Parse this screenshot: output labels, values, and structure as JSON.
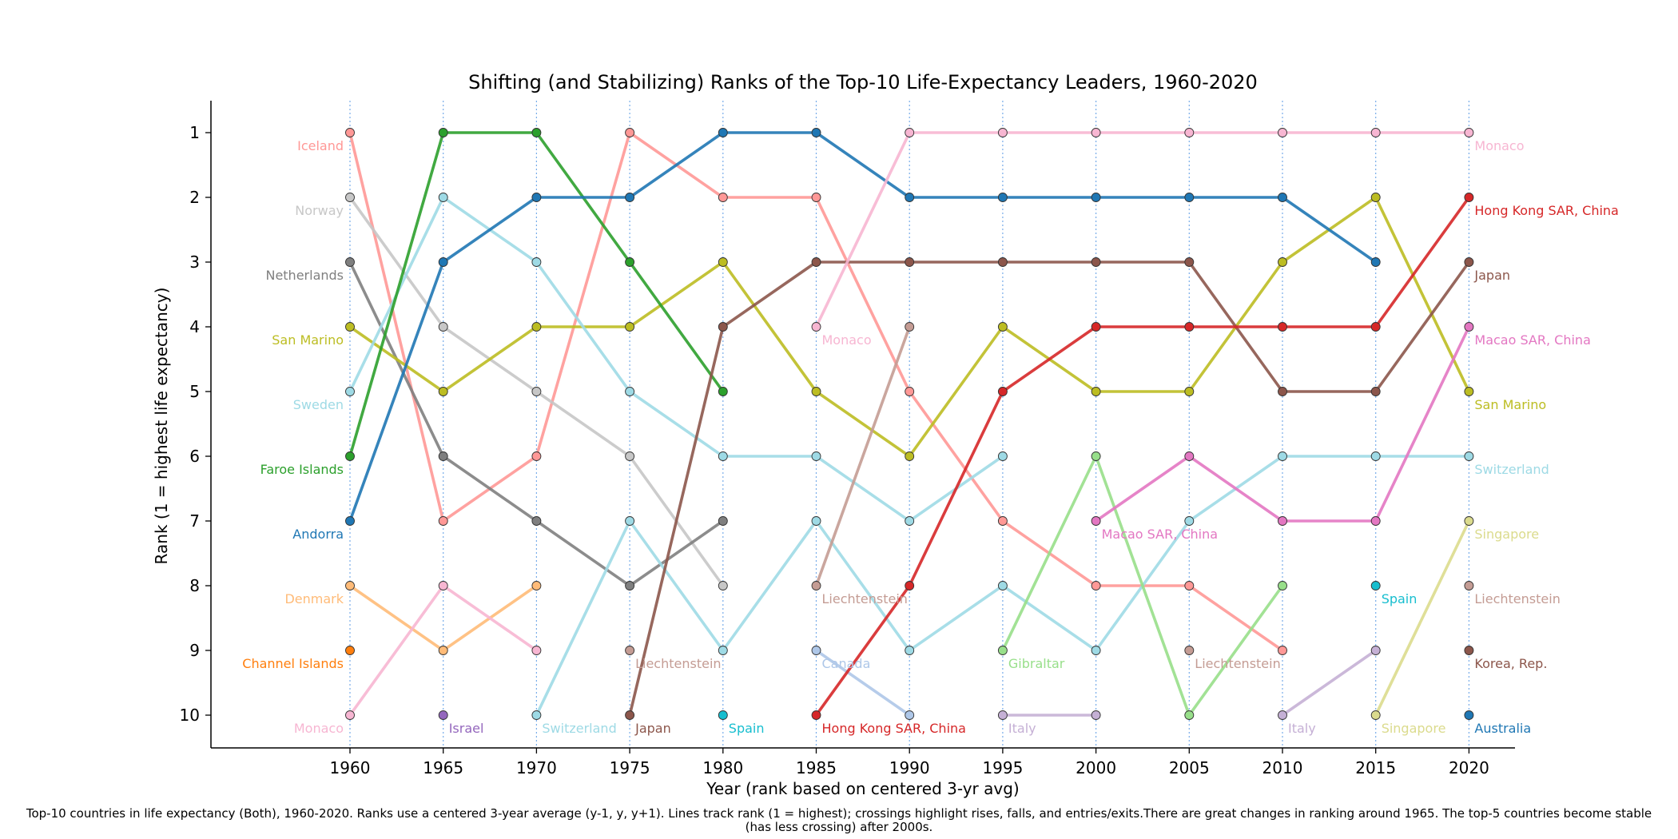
{
  "chart_data": {
    "type": "line",
    "title": "Shifting (and Stabilizing) Ranks of the Top-10 Life-Expectancy Leaders, 1960-2020",
    "xlabel": "Year (rank based on centered 3-yr avg)",
    "ylabel": "Rank (1 = highest life expectancy)",
    "x": [
      1960,
      1965,
      1970,
      1975,
      1980,
      1985,
      1990,
      1995,
      2000,
      2005,
      2010,
      2015,
      2020
    ],
    "y_ticks": [
      1,
      2,
      3,
      4,
      5,
      6,
      7,
      8,
      9,
      10
    ],
    "ylim": [
      10.5,
      0.5
    ],
    "y_inverted": true,
    "series": [
      {
        "name": "Iceland",
        "color": "#ff9896",
        "points": [
          [
            1960,
            1
          ],
          [
            1965,
            7
          ],
          [
            1970,
            6
          ],
          [
            1975,
            1
          ],
          [
            1980,
            2
          ],
          [
            1985,
            2
          ],
          [
            1990,
            5
          ],
          [
            1995,
            7
          ],
          [
            2000,
            8
          ],
          [
            2005,
            8
          ],
          [
            2010,
            9
          ]
        ],
        "labels": [
          {
            "text": "Iceland",
            "year": 1960,
            "rank": 1
          }
        ]
      },
      {
        "name": "Norway",
        "color": "#c7c7c7",
        "points": [
          [
            1960,
            2
          ],
          [
            1965,
            4
          ],
          [
            1970,
            5
          ],
          [
            1975,
            6
          ],
          [
            1980,
            8
          ]
        ],
        "labels": [
          {
            "text": "Norway",
            "year": 1960,
            "rank": 2
          }
        ]
      },
      {
        "name": "Netherlands",
        "color": "#7f7f7f",
        "points": [
          [
            1960,
            3
          ],
          [
            1965,
            6
          ],
          [
            1970,
            7
          ],
          [
            1975,
            8
          ],
          [
            1980,
            7
          ]
        ],
        "labels": [
          {
            "text": "Netherlands",
            "year": 1960,
            "rank": 3
          }
        ]
      },
      {
        "name": "San Marino",
        "color": "#bcbd22",
        "points": [
          [
            1960,
            4
          ],
          [
            1965,
            5
          ],
          [
            1970,
            4
          ],
          [
            1975,
            4
          ],
          [
            1980,
            3
          ],
          [
            1985,
            5
          ],
          [
            1990,
            6
          ],
          [
            1995,
            4
          ],
          [
            2000,
            5
          ],
          [
            2005,
            5
          ],
          [
            2010,
            3
          ],
          [
            2015,
            2
          ],
          [
            2020,
            5
          ]
        ],
        "labels": [
          {
            "text": "San Marino",
            "year": 1960,
            "rank": 4
          },
          {
            "text": "San Marino",
            "year": 2020,
            "rank": 5
          }
        ]
      },
      {
        "name": "Sweden",
        "color": "#9edae5",
        "points": [
          [
            1960,
            5
          ],
          [
            1965,
            2
          ],
          [
            1970,
            3
          ],
          [
            1975,
            5
          ],
          [
            1980,
            6
          ],
          [
            1985,
            6
          ],
          [
            1990,
            7
          ],
          [
            1995,
            6
          ]
        ],
        "labels": [
          {
            "text": "Sweden",
            "year": 1960,
            "rank": 5
          }
        ]
      },
      {
        "name": "Faroe Islands",
        "color": "#2ca02c",
        "points": [
          [
            1960,
            6
          ],
          [
            1965,
            1
          ],
          [
            1970,
            1
          ],
          [
            1975,
            3
          ],
          [
            1980,
            5
          ]
        ],
        "labels": [
          {
            "text": "Faroe Islands",
            "year": 1960,
            "rank": 6
          }
        ]
      },
      {
        "name": "Andorra",
        "color": "#1f77b4",
        "points": [
          [
            1960,
            7
          ],
          [
            1965,
            3
          ],
          [
            1970,
            2
          ],
          [
            1975,
            2
          ],
          [
            1980,
            1
          ],
          [
            1985,
            1
          ],
          [
            1990,
            2
          ],
          [
            1995,
            2
          ],
          [
            2000,
            2
          ],
          [
            2005,
            2
          ],
          [
            2010,
            2
          ],
          [
            2015,
            3
          ]
        ],
        "labels": [
          {
            "text": "Andorra",
            "year": 1960,
            "rank": 7
          }
        ]
      },
      {
        "name": "Denmark",
        "color": "#ffbb78",
        "points": [
          [
            1960,
            8
          ],
          [
            1965,
            9
          ],
          [
            1970,
            8
          ]
        ],
        "labels": [
          {
            "text": "Denmark",
            "year": 1960,
            "rank": 8
          }
        ]
      },
      {
        "name": "Channel Islands",
        "color": "#ff7f0e",
        "points": [
          [
            1960,
            9
          ]
        ],
        "labels": [
          {
            "text": "Channel Islands",
            "year": 1960,
            "rank": 9
          }
        ]
      },
      {
        "name": "Monaco",
        "color": "#f7b6d2",
        "points": [
          [
            1960,
            10
          ],
          [
            1965,
            8
          ],
          [
            1970,
            9
          ]
        ],
        "labels": [
          {
            "text": "Monaco",
            "year": 1960,
            "rank": 10
          }
        ]
      },
      {
        "name": "Israel",
        "color": "#9467bd",
        "points": [
          [
            1965,
            10
          ]
        ],
        "labels": [
          {
            "text": "Israel",
            "year": 1965,
            "rank": 10
          }
        ]
      },
      {
        "name": "Switzerland",
        "color": "#9edae5",
        "points": [
          [
            1970,
            10
          ],
          [
            1975,
            7
          ],
          [
            1980,
            9
          ],
          [
            1985,
            7
          ],
          [
            1990,
            9
          ],
          [
            1995,
            8
          ],
          [
            2000,
            9
          ],
          [
            2005,
            7
          ],
          [
            2010,
            6
          ],
          [
            2015,
            6
          ],
          [
            2020,
            6
          ]
        ],
        "labels": [
          {
            "text": "Switzerland",
            "year": 1970,
            "rank": 10
          },
          {
            "text": "Switzerland",
            "year": 2020,
            "rank": 6
          }
        ]
      },
      {
        "name": "Japan",
        "color": "#8c564b",
        "points": [
          [
            1975,
            10
          ],
          [
            1980,
            4
          ],
          [
            1985,
            3
          ],
          [
            1990,
            3
          ],
          [
            1995,
            3
          ],
          [
            2000,
            3
          ],
          [
            2005,
            3
          ],
          [
            2010,
            5
          ],
          [
            2015,
            5
          ],
          [
            2020,
            3
          ]
        ],
        "labels": [
          {
            "text": "Japan",
            "year": 1975,
            "rank": 10
          },
          {
            "text": "Japan",
            "year": 2020,
            "rank": 3
          }
        ]
      },
      {
        "name": "Liechtenstein",
        "color": "#c49c94",
        "points": [
          [
            1975,
            9
          ]
        ],
        "labels": [
          {
            "text": "Liechtenstein",
            "year": 1975,
            "rank": 9
          }
        ]
      },
      {
        "name": "Spain",
        "color": "#17becf",
        "points": [
          [
            1980,
            10
          ]
        ],
        "labels": [
          {
            "text": "Spain",
            "year": 1980,
            "rank": 10
          }
        ]
      },
      {
        "name": "Monaco",
        "color": "#f7b6d2",
        "points": [
          [
            1985,
            4
          ],
          [
            1990,
            1
          ],
          [
            1995,
            1
          ],
          [
            2000,
            1
          ],
          [
            2005,
            1
          ],
          [
            2010,
            1
          ],
          [
            2015,
            1
          ],
          [
            2020,
            1
          ]
        ],
        "labels": [
          {
            "text": "Monaco",
            "year": 1985,
            "rank": 4
          },
          {
            "text": "Monaco",
            "year": 2020,
            "rank": 1
          }
        ]
      },
      {
        "name": "Liechtenstein",
        "color": "#c49c94",
        "points": [
          [
            1985,
            8
          ],
          [
            1990,
            4
          ]
        ],
        "labels": [
          {
            "text": "Liechtenstein",
            "year": 1985,
            "rank": 8
          }
        ]
      },
      {
        "name": "Canada",
        "color": "#aec7e8",
        "points": [
          [
            1985,
            9
          ],
          [
            1990,
            10
          ]
        ],
        "labels": [
          {
            "text": "Canada",
            "year": 1985,
            "rank": 9
          }
        ]
      },
      {
        "name": "Hong Kong SAR, China",
        "color": "#d62728",
        "points": [
          [
            1985,
            10
          ],
          [
            1990,
            8
          ],
          [
            1995,
            5
          ],
          [
            2000,
            4
          ],
          [
            2005,
            4
          ],
          [
            2010,
            4
          ],
          [
            2015,
            4
          ],
          [
            2020,
            2
          ]
        ],
        "labels": [
          {
            "text": "Hong Kong SAR, China",
            "year": 1985,
            "rank": 10
          },
          {
            "text": "Hong Kong SAR, China",
            "year": 2020,
            "rank": 2
          }
        ]
      },
      {
        "name": "Italy",
        "color": "#c5b0d5",
        "points": [
          [
            1995,
            10
          ],
          [
            2000,
            10
          ]
        ],
        "labels": [
          {
            "text": "Italy",
            "year": 1995,
            "rank": 10
          }
        ]
      },
      {
        "name": "Gibraltar",
        "color": "#98df8a",
        "points": [
          [
            1995,
            9
          ],
          [
            2000,
            6
          ],
          [
            2005,
            10
          ],
          [
            2010,
            8
          ]
        ],
        "labels": [
          {
            "text": "Gibraltar",
            "year": 1995,
            "rank": 9
          }
        ]
      },
      {
        "name": "Macao SAR, China",
        "color": "#e377c2",
        "points": [
          [
            2000,
            7
          ],
          [
            2005,
            6
          ],
          [
            2010,
            7
          ],
          [
            2015,
            7
          ],
          [
            2020,
            4
          ]
        ],
        "labels": [
          {
            "text": "Macao SAR, China",
            "year": 2000,
            "rank": 7
          },
          {
            "text": "Macao SAR, China",
            "year": 2020,
            "rank": 4
          }
        ]
      },
      {
        "name": "Liechtenstein",
        "color": "#c49c94",
        "points": [
          [
            2005,
            9
          ]
        ],
        "labels": [
          {
            "text": "Liechtenstein",
            "year": 2005,
            "rank": 9
          }
        ]
      },
      {
        "name": "Italy",
        "color": "#c5b0d5",
        "points": [
          [
            2010,
            10
          ],
          [
            2015,
            9
          ]
        ],
        "labels": [
          {
            "text": "Italy",
            "year": 2010,
            "rank": 10
          }
        ]
      },
      {
        "name": "Spain",
        "color": "#17becf",
        "points": [
          [
            2015,
            8
          ]
        ],
        "labels": [
          {
            "text": "Spain",
            "year": 2015,
            "rank": 8
          }
        ]
      },
      {
        "name": "Singapore",
        "color": "#dbdb8d",
        "points": [
          [
            2015,
            10
          ],
          [
            2020,
            7
          ]
        ],
        "labels": [
          {
            "text": "Singapore",
            "year": 2015,
            "rank": 10
          },
          {
            "text": "Singapore",
            "year": 2020,
            "rank": 7
          }
        ]
      },
      {
        "name": "Liechtenstein",
        "color": "#c49c94",
        "points": [
          [
            2020,
            8
          ]
        ],
        "labels": [
          {
            "text": "Liechtenstein",
            "year": 2020,
            "rank": 8
          }
        ]
      },
      {
        "name": "Korea, Rep.",
        "color": "#8c564b",
        "points": [
          [
            2020,
            9
          ]
        ],
        "labels": [
          {
            "text": "Korea, Rep.",
            "year": 2020,
            "rank": 9
          }
        ]
      },
      {
        "name": "Australia",
        "color": "#1f77b4",
        "points": [
          [
            2020,
            10
          ]
        ],
        "labels": [
          {
            "text": "Australia",
            "year": 2020,
            "rank": 10
          }
        ]
      }
    ],
    "grid": "vertical dotted at each year",
    "caption": "Top-10 countries in life expectancy (Both), 1960-2020. Ranks use a centered 3-year average (y-1, y, y+1). Lines track rank (1 = highest); crossings highlight rises, falls, and entries/exits.There are great changes in ranking around 1965. The top-5 countries become stable (has less crossing) after 2000s."
  }
}
